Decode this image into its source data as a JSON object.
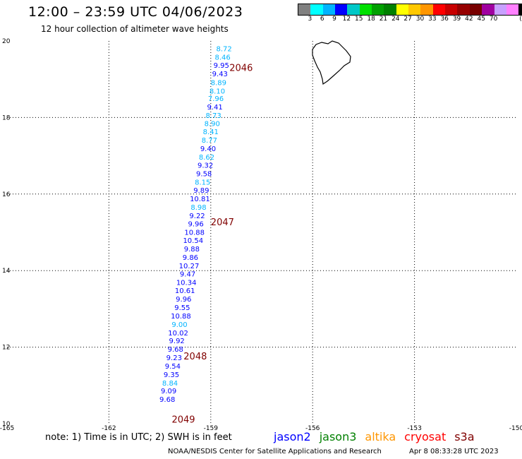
{
  "header": {
    "title": "12:00 – 23:59 UTC 04/06/2023",
    "subtitle": "12 hour collection of altimeter wave heights"
  },
  "legend": {
    "colors": [
      "#808080",
      "#00ffff",
      "#00b4ff",
      "#0000ff",
      "#00c8c8",
      "#00e000",
      "#00a000",
      "#008000",
      "#ffff00",
      "#ffc800",
      "#ff9600",
      "#ff0000",
      "#c80000",
      "#960000",
      "#780000",
      "#a000a0",
      "#c8a0ff",
      "#ff80ff",
      "#000000"
    ],
    "labels": [
      "3",
      "6",
      "9",
      "12",
      "15",
      "18",
      "21",
      "24",
      "27",
      "30",
      "33",
      "36",
      "39",
      "42",
      "45",
      "70",
      "(ft)"
    ]
  },
  "map": {
    "lon_range": [
      -165,
      -150
    ],
    "lat_range": [
      10,
      20
    ],
    "lon_ticks": [
      "-165",
      "-162",
      "-159",
      "-156",
      "-153",
      "-150"
    ],
    "lat_ticks": [
      "20",
      "18",
      "16",
      "14",
      "12",
      "10"
    ],
    "grid": "dotted",
    "coastline": "Big Island of Hawaii (top center)"
  },
  "pass_labels": [
    {
      "text": "2046",
      "lat": 19.22,
      "lon": -158.45,
      "color": "#800000"
    },
    {
      "text": "2047",
      "lat": 15.18,
      "lon": -159.0,
      "color": "#800000"
    },
    {
      "text": "2048",
      "lat": 11.68,
      "lon": -159.8,
      "color": "#800000"
    },
    {
      "text": "2049",
      "lat": 10.03,
      "lon": -160.15,
      "color": "#800000"
    }
  ],
  "observations": [
    {
      "v": "8.72",
      "lat": 19.73,
      "lon": -158.61,
      "c": "#00b4ff"
    },
    {
      "v": "8.46",
      "lat": 19.51,
      "lon": -158.65,
      "c": "#00b4ff"
    },
    {
      "v": "9.95",
      "lat": 19.3,
      "lon": -158.69,
      "c": "#0000ff"
    },
    {
      "v": "9.43",
      "lat": 19.08,
      "lon": -158.73,
      "c": "#0000ff"
    },
    {
      "v": "8.89",
      "lat": 18.85,
      "lon": -158.77,
      "c": "#00b4ff"
    },
    {
      "v": "8.10",
      "lat": 18.63,
      "lon": -158.81,
      "c": "#00b4ff"
    },
    {
      "v": "7.96",
      "lat": 18.43,
      "lon": -158.85,
      "c": "#00b4ff"
    },
    {
      "v": "9.41",
      "lat": 18.21,
      "lon": -158.88,
      "c": "#0000ff"
    },
    {
      "v": "8.73",
      "lat": 17.99,
      "lon": -158.92,
      "c": "#00b4ff"
    },
    {
      "v": "8.90",
      "lat": 17.78,
      "lon": -158.96,
      "c": "#00b4ff"
    },
    {
      "v": "8.41",
      "lat": 17.56,
      "lon": -159.0,
      "c": "#00b4ff"
    },
    {
      "v": "8.77",
      "lat": 17.34,
      "lon": -159.04,
      "c": "#00b4ff"
    },
    {
      "v": "9.40",
      "lat": 17.12,
      "lon": -159.08,
      "c": "#0000ff"
    },
    {
      "v": "8.62",
      "lat": 16.9,
      "lon": -159.12,
      "c": "#00b4ff"
    },
    {
      "v": "9.32",
      "lat": 16.69,
      "lon": -159.16,
      "c": "#0000ff"
    },
    {
      "v": "9.58",
      "lat": 16.47,
      "lon": -159.2,
      "c": "#0000ff"
    },
    {
      "v": "8.15",
      "lat": 16.25,
      "lon": -159.24,
      "c": "#00b4ff"
    },
    {
      "v": "9.89",
      "lat": 16.03,
      "lon": -159.28,
      "c": "#0000ff"
    },
    {
      "v": "10.81",
      "lat": 15.81,
      "lon": -159.32,
      "c": "#0000ff"
    },
    {
      "v": "8.98",
      "lat": 15.59,
      "lon": -159.36,
      "c": "#00b4ff"
    },
    {
      "v": "9.22",
      "lat": 15.37,
      "lon": -159.4,
      "c": "#0000ff"
    },
    {
      "v": "9.96",
      "lat": 15.16,
      "lon": -159.44,
      "c": "#0000ff"
    },
    {
      "v": "10.88",
      "lat": 14.94,
      "lon": -159.48,
      "c": "#0000ff"
    },
    {
      "v": "10.54",
      "lat": 14.72,
      "lon": -159.52,
      "c": "#0000ff"
    },
    {
      "v": "9.88",
      "lat": 14.5,
      "lon": -159.56,
      "c": "#0000ff"
    },
    {
      "v": "9.86",
      "lat": 14.28,
      "lon": -159.6,
      "c": "#0000ff"
    },
    {
      "v": "10.27",
      "lat": 14.06,
      "lon": -159.64,
      "c": "#0000ff"
    },
    {
      "v": "9.47",
      "lat": 13.85,
      "lon": -159.68,
      "c": "#0000ff"
    },
    {
      "v": "10.34",
      "lat": 13.63,
      "lon": -159.72,
      "c": "#0000ff"
    },
    {
      "v": "10.61",
      "lat": 13.41,
      "lon": -159.76,
      "c": "#0000ff"
    },
    {
      "v": "9.96",
      "lat": 13.19,
      "lon": -159.8,
      "c": "#0000ff"
    },
    {
      "v": "9.55",
      "lat": 12.97,
      "lon": -159.84,
      "c": "#0000ff"
    },
    {
      "v": "10.88",
      "lat": 12.75,
      "lon": -159.88,
      "c": "#0000ff"
    },
    {
      "v": "9.00",
      "lat": 12.53,
      "lon": -159.92,
      "c": "#00b4ff"
    },
    {
      "v": "10.02",
      "lat": 12.31,
      "lon": -159.96,
      "c": "#0000ff"
    },
    {
      "v": "9.92",
      "lat": 12.1,
      "lon": -160.0,
      "c": "#0000ff"
    },
    {
      "v": "9.68",
      "lat": 11.88,
      "lon": -160.04,
      "c": "#0000ff"
    },
    {
      "v": "9.23",
      "lat": 11.66,
      "lon": -160.08,
      "c": "#0000ff"
    },
    {
      "v": "9.54",
      "lat": 11.44,
      "lon": -160.12,
      "c": "#0000ff"
    },
    {
      "v": "9.35",
      "lat": 11.22,
      "lon": -160.16,
      "c": "#0000ff"
    },
    {
      "v": "8.84",
      "lat": 11.0,
      "lon": -160.2,
      "c": "#00b4ff"
    },
    {
      "v": "9.09",
      "lat": 10.79,
      "lon": -160.24,
      "c": "#0000ff"
    },
    {
      "v": "9.68",
      "lat": 10.57,
      "lon": -160.28,
      "c": "#0000ff"
    }
  ],
  "footer": {
    "note": "note:  1) Time is in UTC;  2) SWH is in feet",
    "satellites": [
      {
        "name": "jason2",
        "color": "#0000ff"
      },
      {
        "name": "jason3",
        "color": "#008000"
      },
      {
        "name": "altika",
        "color": "#ff9600"
      },
      {
        "name": "cryosat",
        "color": "#ff0000"
      },
      {
        "name": "s3a",
        "color": "#800000"
      }
    ],
    "credit": "NOAA/NESDIS Center for Satellite Applications and Research",
    "timestamp": "Apr  8 08:33:28 UTC 2023"
  }
}
